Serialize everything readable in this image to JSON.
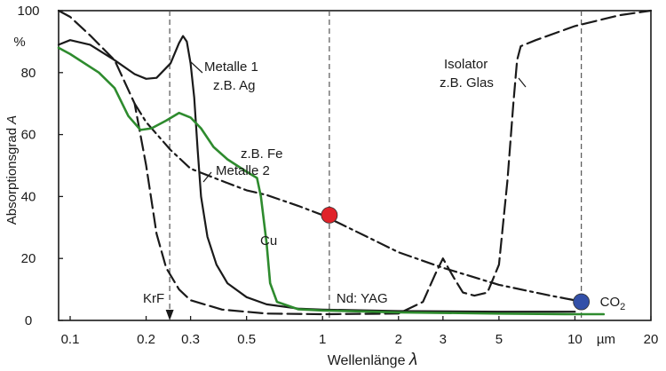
{
  "chart_data": {
    "type": "line",
    "xscale": "log",
    "xlim": [
      0.09,
      20
    ],
    "ylim": [
      0,
      100
    ],
    "xlabel": "Wellenlänge",
    "xlabel_symbol": "λ",
    "ylabel": "Absorptionsgrad",
    "ylabel_symbol": "A",
    "y_unit": "%",
    "x_unit": "µm",
    "x_ticks": [
      {
        "v": 0.1,
        "t": "0.1"
      },
      {
        "v": 0.2,
        "t": "0.2"
      },
      {
        "v": 0.3,
        "t": "0.3"
      },
      {
        "v": 0.5,
        "t": "0.5"
      },
      {
        "v": 1,
        "t": "1"
      },
      {
        "v": 2,
        "t": "2"
      },
      {
        "v": 3,
        "t": "3"
      },
      {
        "v": 5,
        "t": "5"
      },
      {
        "v": 10,
        "t": "10"
      },
      {
        "v": 20,
        "t": "20"
      }
    ],
    "y_ticks": [
      {
        "v": 0,
        "t": "0"
      },
      {
        "v": 20,
        "t": "20"
      },
      {
        "v": 40,
        "t": "40"
      },
      {
        "v": 60,
        "t": "60"
      },
      {
        "v": 80,
        "t": "80"
      },
      {
        "v": 100,
        "t": "100"
      }
    ],
    "series": [
      {
        "name": "Metalle 1 z.B. Ag",
        "style": "solid",
        "color": "#1a1a1a",
        "points": [
          [
            0.09,
            89
          ],
          [
            0.1,
            90.5
          ],
          [
            0.12,
            89
          ],
          [
            0.15,
            84
          ],
          [
            0.18,
            79.5
          ],
          [
            0.2,
            78
          ],
          [
            0.22,
            78.3
          ],
          [
            0.25,
            83
          ],
          [
            0.27,
            89.5
          ],
          [
            0.28,
            91.8
          ],
          [
            0.29,
            90
          ],
          [
            0.3,
            83
          ],
          [
            0.31,
            72
          ],
          [
            0.32,
            55
          ],
          [
            0.33,
            40
          ],
          [
            0.35,
            27
          ],
          [
            0.38,
            18
          ],
          [
            0.42,
            12
          ],
          [
            0.5,
            7.5
          ],
          [
            0.6,
            5.2
          ],
          [
            0.8,
            3.8
          ],
          [
            1,
            3.5
          ],
          [
            2,
            3
          ],
          [
            5,
            2.8
          ],
          [
            10,
            2.8
          ]
        ]
      },
      {
        "name": "z.B. Fe Metalle 2",
        "style": "dashdot",
        "color": "#1a1a1a",
        "points": [
          [
            0.18,
            70
          ],
          [
            0.2,
            64
          ],
          [
            0.25,
            55
          ],
          [
            0.3,
            49
          ],
          [
            0.4,
            45
          ],
          [
            0.5,
            42
          ],
          [
            0.6,
            40.5
          ],
          [
            0.8,
            37
          ],
          [
            1,
            34
          ],
          [
            1.5,
            27
          ],
          [
            2,
            22
          ],
          [
            3,
            17
          ],
          [
            5,
            11.5
          ],
          [
            8,
            8
          ],
          [
            10,
            6.5
          ]
        ]
      },
      {
        "name": "Isolator z.B. Glas",
        "style": "longdash",
        "color": "#1a1a1a",
        "points": [
          [
            0.09,
            100
          ],
          [
            0.1,
            98
          ],
          [
            0.12,
            92
          ],
          [
            0.15,
            84
          ],
          [
            0.18,
            70
          ],
          [
            0.2,
            50
          ],
          [
            0.22,
            28
          ],
          [
            0.24,
            17
          ],
          [
            0.27,
            10
          ],
          [
            0.3,
            6.5
          ],
          [
            0.4,
            3.5
          ],
          [
            0.6,
            2.2
          ],
          [
            1,
            2
          ],
          [
            2,
            2.2
          ],
          [
            2.5,
            6
          ],
          [
            2.8,
            15
          ],
          [
            3,
            20
          ],
          [
            3.3,
            14
          ],
          [
            3.6,
            9
          ],
          [
            4,
            8
          ],
          [
            4.5,
            9
          ],
          [
            5,
            18
          ],
          [
            5.4,
            45
          ],
          [
            5.7,
            70
          ],
          [
            5.9,
            84
          ],
          [
            6.1,
            88.5
          ],
          [
            7,
            90.5
          ],
          [
            10,
            95
          ],
          [
            15,
            98.5
          ],
          [
            20,
            100
          ]
        ]
      },
      {
        "name": "Cu",
        "style": "solid",
        "color": "#2e8b2e",
        "points": [
          [
            0.09,
            88
          ],
          [
            0.1,
            86
          ],
          [
            0.13,
            80
          ],
          [
            0.15,
            75
          ],
          [
            0.17,
            66
          ],
          [
            0.19,
            61.5
          ],
          [
            0.21,
            62
          ],
          [
            0.24,
            64.5
          ],
          [
            0.27,
            67
          ],
          [
            0.3,
            65.5
          ],
          [
            0.33,
            62
          ],
          [
            0.37,
            56
          ],
          [
            0.42,
            52
          ],
          [
            0.5,
            48
          ],
          [
            0.55,
            46
          ],
          [
            0.57,
            40
          ],
          [
            0.6,
            25
          ],
          [
            0.62,
            12
          ],
          [
            0.66,
            6
          ],
          [
            0.8,
            3.6
          ],
          [
            1,
            3.2
          ],
          [
            2,
            2.6
          ],
          [
            5,
            2.2
          ],
          [
            10,
            2
          ],
          [
            13,
            2
          ]
        ]
      }
    ],
    "vertical_lines": [
      {
        "x": 0.248,
        "label": "KrF",
        "arrow": true
      },
      {
        "x": 1.064,
        "label": "Nd: YAG",
        "arrow": false
      },
      {
        "x": 10.6,
        "label": "CO",
        "label_sub": "2",
        "arrow": false
      }
    ],
    "markers": [
      {
        "x": 1.064,
        "y": 34,
        "color": "#e0232a"
      },
      {
        "x": 10.6,
        "y": 6,
        "color": "#3350a8"
      }
    ],
    "annotations": [
      {
        "lines": [
          "Metalle 1",
          "z.B. Ag"
        ],
        "color": "#1a1a1a"
      },
      {
        "lines": [
          "z.B. Fe",
          "Metalle 2"
        ],
        "color": "#1a1a1a"
      },
      {
        "lines": [
          "Isolator",
          "z.B. Glas"
        ],
        "color": "#1a1a1a"
      },
      {
        "lines": [
          "Cu"
        ],
        "color": "#2e8b2e"
      }
    ]
  }
}
